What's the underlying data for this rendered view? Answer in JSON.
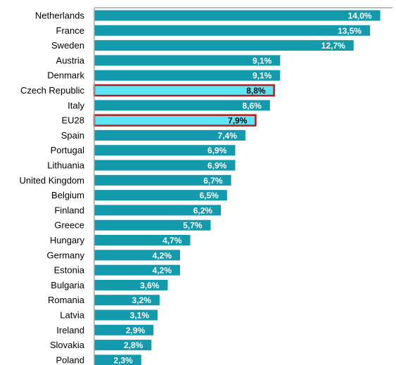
{
  "chart_data": {
    "type": "bar",
    "orientation": "horizontal",
    "categories": [
      "Netherlands",
      "France",
      "Sweden",
      "Austria",
      "Denmark",
      "Czech Republic",
      "Italy",
      "EU28",
      "Spain",
      "Portugal",
      "Lithuania",
      "United Kingdom",
      "Belgium",
      "Finland",
      "Greece",
      "Hungary",
      "Germany",
      "Estonia",
      "Bulgaria",
      "Romania",
      "Latvia",
      "Ireland",
      "Slovakia",
      "Poland"
    ],
    "values": [
      14.0,
      13.5,
      12.7,
      9.1,
      9.1,
      8.8,
      8.6,
      7.9,
      7.4,
      6.9,
      6.9,
      6.7,
      6.5,
      6.2,
      5.7,
      4.7,
      4.2,
      4.2,
      3.6,
      3.2,
      3.1,
      2.9,
      2.8,
      2.3
    ],
    "value_labels": [
      "14,0%",
      "13,5%",
      "12,7%",
      "9,1%",
      "9,1%",
      "8,8%",
      "8,6%",
      "7,9%",
      "7,4%",
      "6,9%",
      "6,9%",
      "6,7%",
      "6,5%",
      "6,2%",
      "5,7%",
      "4,7%",
      "4,2%",
      "4,2%",
      "3,6%",
      "3,2%",
      "3,1%",
      "2,9%",
      "2,8%",
      "2,3%"
    ],
    "highlighted": [
      "Czech Republic",
      "EU28"
    ],
    "title": "",
    "xlabel": "",
    "ylabel": "",
    "xlim": [
      0,
      14.6
    ],
    "grid": false,
    "legend": "none",
    "colors": {
      "bar": "#149aad",
      "highlight_fill": "#5de6f5",
      "highlight_border": "#b01e22",
      "axis": "#a6a6a6"
    }
  }
}
